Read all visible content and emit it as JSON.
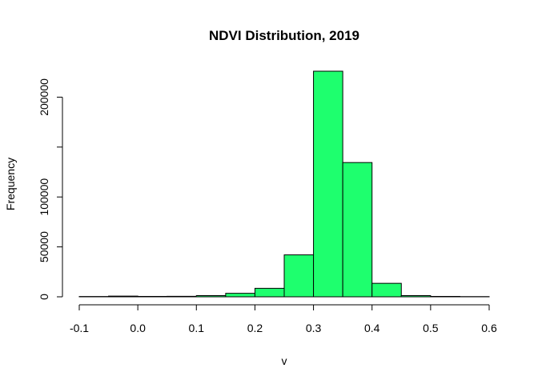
{
  "chart_data": {
    "type": "bar",
    "title": "NDVI Distribution, 2019",
    "xlabel": "v",
    "ylabel": "Frequency",
    "bin_edges": [
      -0.1,
      -0.05,
      0.0,
      0.05,
      0.1,
      0.15,
      0.2,
      0.25,
      0.3,
      0.35,
      0.4,
      0.45,
      0.5,
      0.55,
      0.6
    ],
    "values": [
      300,
      700,
      400,
      500,
      1200,
      3500,
      8500,
      42000,
      226000,
      134500,
      13500,
      1200,
      400,
      200
    ],
    "xlim": [
      -0.1,
      0.6
    ],
    "ylim": [
      0,
      226000
    ],
    "x_ticks": [
      -0.1,
      0.0,
      0.1,
      0.2,
      0.3,
      0.4,
      0.5,
      0.6
    ],
    "x_tick_labels": [
      "-0.1",
      "0.0",
      "0.1",
      "0.2",
      "0.3",
      "0.4",
      "0.5",
      "0.6"
    ],
    "y_ticks": [
      0,
      50000,
      100000,
      150000,
      200000
    ],
    "y_tick_labels": [
      "0",
      "50000",
      "100000",
      "",
      "200000"
    ],
    "bar_color": "#1eff6e",
    "grid": false,
    "legend": "none"
  }
}
